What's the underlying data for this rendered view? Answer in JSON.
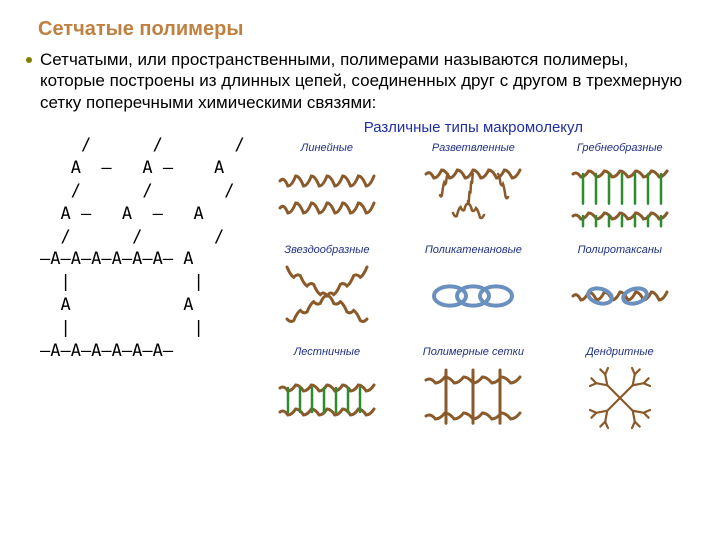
{
  "colors": {
    "heading": "#c08040",
    "body_text": "#000000",
    "bullet": "#808000",
    "fig_title": "#2030a0",
    "fig_label": "#203080",
    "chain_main": "#8a5a2b",
    "chain_side": "#2e8b2e",
    "ring": "#6a90c0"
  },
  "heading": "Сетчатые полимеры",
  "body": "Сетчатыми, или пространственными, полимерами называются полимеры, которые построены из длинных цепей, соединенных друг с другом в трехмерную сетку поперечными химическими связями:",
  "structure_lines": [
    "    /      /       /",
    "   A  –   A –    A",
    "   /      /       /",
    "  A –   A  –   A",
    "  /      /       /",
    "–A–A–A–A–A–A– A",
    "  |            |",
    "  A           A",
    "  |            |",
    "–A–A–A–A–A–A–"
  ],
  "figure": {
    "title": "Различные типы макромолекул",
    "types": [
      {
        "key": "linear",
        "label": "Линейные"
      },
      {
        "key": "branched",
        "label": "Разветвленные"
      },
      {
        "key": "comb",
        "label": "Гребнеобразные"
      },
      {
        "key": "star",
        "label": "Звездообразные"
      },
      {
        "key": "catenane",
        "label": "Поликатенановые"
      },
      {
        "key": "rotaxane",
        "label": "Полиротаксаны"
      },
      {
        "key": "ladder",
        "label": "Лестничные"
      },
      {
        "key": "network",
        "label": "Полимерные сетки"
      },
      {
        "key": "dendritic",
        "label": "Дендритные"
      }
    ]
  }
}
